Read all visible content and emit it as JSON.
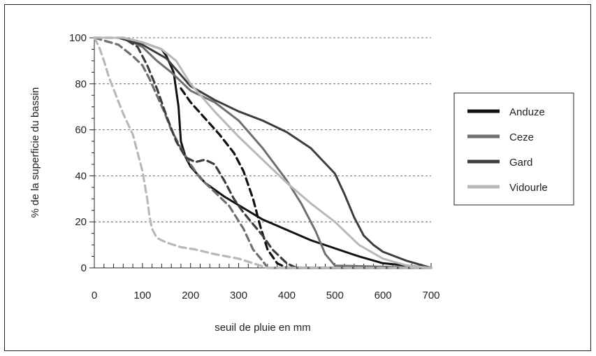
{
  "chart_data": {
    "type": "line",
    "title": "",
    "xlabel": "seuil de pluie en mm",
    "ylabel": "% de la superficie du bassin",
    "xlim": [
      0,
      700
    ],
    "ylim": [
      0,
      100
    ],
    "xticks": [
      0,
      100,
      200,
      300,
      400,
      500,
      600,
      700
    ],
    "yticks": [
      0,
      20,
      40,
      60,
      80,
      100
    ],
    "grid": "horizontal dashed",
    "legend_position": "right",
    "colors": {
      "Anduze": "#111111",
      "Ceze": "#6f6f6f",
      "Gard": "#3d3d3d",
      "Vidourle": "#b8b8b8"
    },
    "series": [
      {
        "name": "Anduze",
        "color": "#111111",
        "style": "solid",
        "x": [
          0,
          60,
          100,
          140,
          150,
          165,
          175,
          180,
          190,
          200,
          230,
          270,
          350,
          450,
          550,
          600,
          700
        ],
        "y": [
          100,
          100,
          98,
          95,
          92,
          85,
          70,
          55,
          48,
          44,
          37,
          31,
          21,
          12,
          5,
          2,
          0
        ]
      },
      {
        "name": "Anduze",
        "color": "#111111",
        "style": "dashed",
        "x": [
          180,
          200,
          230,
          260,
          290,
          310,
          330,
          345,
          360,
          380,
          400,
          700
        ],
        "y": [
          78,
          72,
          65,
          58,
          50,
          42,
          30,
          18,
          8,
          2,
          0,
          0
        ]
      },
      {
        "name": "Ceze",
        "color": "#6f6f6f",
        "style": "solid",
        "x": [
          0,
          60,
          100,
          130,
          160,
          200,
          250,
          300,
          350,
          400,
          430,
          460,
          480,
          500,
          700
        ],
        "y": [
          100,
          100,
          96,
          90,
          85,
          77,
          72,
          64,
          52,
          38,
          28,
          16,
          6,
          1,
          0
        ]
      },
      {
        "name": "Ceze",
        "color": "#6f6f6f",
        "style": "dashed",
        "x": [
          0,
          50,
          80,
          100,
          115,
          130,
          145,
          160,
          180,
          200,
          220,
          250,
          280,
          310,
          330,
          350,
          360,
          700
        ],
        "y": [
          100,
          97,
          92,
          88,
          82,
          75,
          68,
          60,
          52,
          45,
          39,
          33,
          27,
          17,
          8,
          3,
          0,
          0
        ]
      },
      {
        "name": "Gard",
        "color": "#3d3d3d",
        "style": "solid",
        "x": [
          0,
          50,
          100,
          150,
          200,
          250,
          300,
          350,
          400,
          450,
          500,
          520,
          540,
          560,
          580,
          600,
          650,
          700
        ],
        "y": [
          100,
          100,
          97,
          91,
          79,
          73,
          68,
          64,
          59,
          52,
          41,
          32,
          22,
          14,
          10,
          7,
          3,
          0
        ]
      },
      {
        "name": "Gard",
        "color": "#3d3d3d",
        "style": "dashed",
        "x": [
          0,
          60,
          90,
          110,
          130,
          150,
          170,
          190,
          210,
          230,
          250,
          270,
          290,
          310,
          330,
          350,
          370,
          400,
          420,
          700
        ],
        "y": [
          100,
          100,
          96,
          88,
          78,
          66,
          55,
          48,
          46,
          47,
          45,
          38,
          30,
          24,
          19,
          14,
          8,
          2,
          0,
          0
        ]
      },
      {
        "name": "Vidourle",
        "color": "#b8b8b8",
        "style": "solid",
        "x": [
          0,
          60,
          100,
          140,
          170,
          200,
          250,
          300,
          350,
          400,
          450,
          500,
          550,
          600,
          650,
          700
        ],
        "y": [
          100,
          100,
          98,
          95,
          90,
          80,
          68,
          57,
          47,
          37,
          28,
          20,
          10,
          4,
          1,
          0
        ]
      },
      {
        "name": "Vidourle",
        "color": "#b8b8b8",
        "style": "dashed",
        "x": [
          0,
          10,
          20,
          30,
          45,
          60,
          80,
          100,
          110,
          115,
          120,
          130,
          150,
          180,
          210,
          250,
          300,
          330,
          360,
          700
        ],
        "y": [
          100,
          96,
          90,
          83,
          75,
          67,
          58,
          42,
          30,
          22,
          17,
          13,
          11,
          9,
          8,
          6,
          4,
          2,
          0,
          0
        ]
      }
    ],
    "legend": [
      {
        "label": "Anduze",
        "color": "#111111"
      },
      {
        "label": "Ceze",
        "color": "#6f6f6f"
      },
      {
        "label": "Gard",
        "color": "#3d3d3d"
      },
      {
        "label": "Vidourle",
        "color": "#b8b8b8"
      }
    ]
  }
}
